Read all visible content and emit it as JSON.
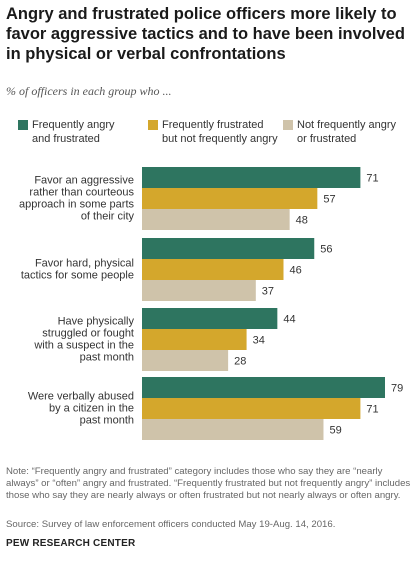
{
  "chart_data": {
    "type": "bar",
    "orientation": "horizontal",
    "title": "Angry and frustrated police officers more likely to favor aggressive tactics and to have been involved in physical or verbal confrontations",
    "subtitle": "% of officers in each group who ...",
    "categories": [
      "Favor an aggressive rather than courteous approach in some parts of their city",
      "Favor hard, physical tactics for some people",
      "Have physically struggled or fought with a suspect in the past month",
      "Were verbally abused by a citizen in the past month"
    ],
    "category_lines": [
      [
        "Favor an aggressive",
        "rather than courteous",
        "approach  in some parts",
        "of their city"
      ],
      [
        "Favor hard, physical",
        "tactics for some people"
      ],
      [
        "Have physically",
        "struggled or fought",
        "with a suspect in the",
        "past month"
      ],
      [
        "Were verbally abused",
        "by a citizen in the",
        "past month"
      ]
    ],
    "series": [
      {
        "name": "Frequently angry and frustrated",
        "legend_lines": "Frequently angry\nand frustrated",
        "color": "#2e7560",
        "values": [
          71,
          56,
          44,
          79
        ]
      },
      {
        "name": "Frequently frustrated but not frequently angry",
        "legend_lines": "Frequently frustrated\nbut not frequently angry",
        "color": "#d4a72c",
        "values": [
          57,
          46,
          34,
          71
        ]
      },
      {
        "name": "Not frequently angry or frustrated",
        "legend_lines": "Not frequently angry\nor frustrated",
        "color": "#cfc3aa",
        "values": [
          48,
          37,
          28,
          59
        ]
      }
    ],
    "xlim": [
      0,
      80
    ],
    "legend_position": "top",
    "grid": false
  },
  "footer": {
    "note": "Note: “Frequently angry and frustrated” category includes those who say they are “nearly always” or “often” angry and frustrated. “Frequently frustrated but not frequently angry” includes those who say they are nearly always or often frustrated but not nearly always or often angry.",
    "source": "Source: Survey of law enforcement officers conducted May 19-Aug. 14, 2016.",
    "brand": "PEW RESEARCH CENTER"
  }
}
